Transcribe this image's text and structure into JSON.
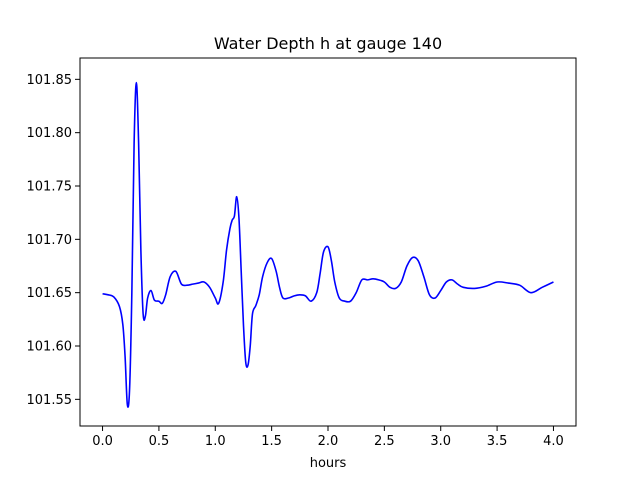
{
  "chart_data": {
    "type": "line",
    "title": "Water Depth h at gauge 140",
    "xlabel": "hours",
    "ylabel": "",
    "xlim": [
      -0.2,
      4.2
    ],
    "ylim": [
      101.525,
      101.87
    ],
    "xticks": [
      0.0,
      0.5,
      1.0,
      1.5,
      2.0,
      2.5,
      3.0,
      3.5,
      4.0
    ],
    "xtick_labels": [
      "0.0",
      "0.5",
      "1.0",
      "1.5",
      "2.0",
      "2.5",
      "3.0",
      "3.5",
      "4.0"
    ],
    "yticks": [
      101.55,
      101.6,
      101.65,
      101.7,
      101.75,
      101.8,
      101.85
    ],
    "ytick_labels": [
      "101.55",
      "101.60",
      "101.65",
      "101.70",
      "101.75",
      "101.80",
      "101.85"
    ],
    "grid": false,
    "series": [
      {
        "color": "#0000ff",
        "x": [
          0.0,
          0.05,
          0.1,
          0.15,
          0.18,
          0.2,
          0.22,
          0.24,
          0.26,
          0.28,
          0.3,
          0.32,
          0.34,
          0.36,
          0.38,
          0.4,
          0.43,
          0.46,
          0.5,
          0.53,
          0.56,
          0.6,
          0.65,
          0.7,
          0.75,
          0.8,
          0.85,
          0.9,
          0.95,
          1.0,
          1.03,
          1.07,
          1.1,
          1.13,
          1.15,
          1.17,
          1.19,
          1.21,
          1.23,
          1.25,
          1.27,
          1.29,
          1.31,
          1.33,
          1.36,
          1.39,
          1.42,
          1.46,
          1.5,
          1.54,
          1.57,
          1.6,
          1.65,
          1.7,
          1.75,
          1.8,
          1.85,
          1.9,
          1.93,
          1.96,
          2.0,
          2.03,
          2.06,
          2.1,
          2.15,
          2.2,
          2.25,
          2.3,
          2.35,
          2.4,
          2.45,
          2.5,
          2.55,
          2.6,
          2.65,
          2.7,
          2.75,
          2.8,
          2.85,
          2.9,
          2.95,
          3.0,
          3.05,
          3.1,
          3.15,
          3.2,
          3.3,
          3.4,
          3.5,
          3.6,
          3.7,
          3.8,
          3.9,
          4.0
        ],
        "y": [
          101.649,
          101.648,
          101.646,
          101.637,
          101.62,
          101.59,
          101.545,
          101.56,
          101.65,
          101.79,
          101.847,
          101.79,
          101.69,
          101.63,
          101.628,
          101.645,
          101.652,
          101.643,
          101.642,
          101.64,
          101.648,
          101.665,
          101.67,
          101.658,
          101.657,
          101.658,
          101.659,
          101.66,
          101.655,
          101.645,
          101.64,
          101.66,
          101.69,
          101.71,
          101.718,
          101.722,
          101.74,
          101.72,
          101.67,
          101.62,
          101.585,
          101.582,
          101.6,
          101.63,
          101.638,
          101.648,
          101.665,
          101.678,
          101.682,
          101.67,
          101.655,
          101.645,
          101.645,
          101.647,
          101.648,
          101.647,
          101.642,
          101.65,
          101.668,
          101.688,
          101.693,
          101.68,
          101.66,
          101.645,
          101.642,
          101.642,
          101.65,
          101.662,
          101.662,
          101.663,
          101.662,
          101.66,
          101.655,
          101.654,
          101.66,
          101.675,
          101.683,
          101.68,
          101.665,
          101.648,
          101.645,
          101.652,
          101.66,
          101.662,
          101.658,
          101.655,
          101.654,
          101.656,
          101.66,
          101.659,
          101.657,
          101.65,
          101.655,
          101.66
        ]
      }
    ]
  }
}
